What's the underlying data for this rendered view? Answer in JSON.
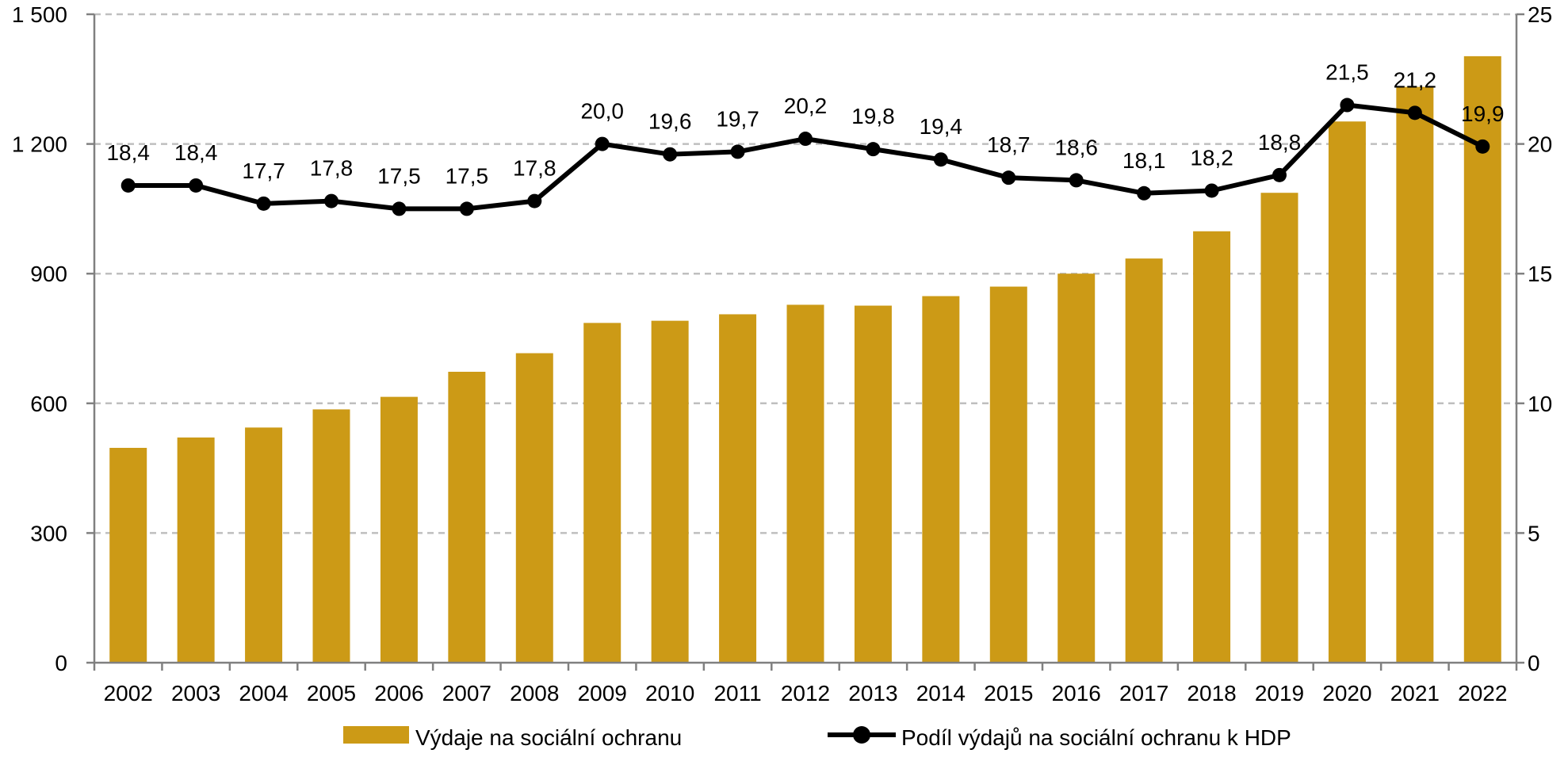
{
  "chart_data": {
    "type": "bar",
    "categories": [
      "2002",
      "2003",
      "2004",
      "2005",
      "2006",
      "2007",
      "2008",
      "2009",
      "2010",
      "2011",
      "2012",
      "2013",
      "2014",
      "2015",
      "2016",
      "2017",
      "2018",
      "2019",
      "2020",
      "2021",
      "2022"
    ],
    "series": [
      {
        "name": "Výdaje na sociální ochranu",
        "type": "bar",
        "axis": "left",
        "color": "#CC9A16",
        "values": [
          497,
          521,
          544,
          586,
          615,
          673,
          716,
          786,
          791,
          806,
          828,
          826,
          848,
          870,
          900,
          935,
          998,
          1087,
          1252,
          1332,
          1403
        ]
      },
      {
        "name": "Podíl výdajů na sociální ochranu k HDP",
        "type": "line",
        "axis": "right",
        "color": "#000000",
        "values": [
          18.4,
          18.4,
          17.7,
          17.8,
          17.5,
          17.5,
          17.8,
          20.0,
          19.6,
          19.7,
          20.2,
          19.8,
          19.4,
          18.7,
          18.6,
          18.1,
          18.2,
          18.8,
          21.5,
          21.2,
          19.9
        ],
        "labels": [
          "18,4",
          "18,4",
          "17,7",
          "17,8",
          "17,5",
          "17,5",
          "17,8",
          "20,0",
          "19,6",
          "19,7",
          "20,2",
          "19,8",
          "19,4",
          "18,7",
          "18,6",
          "18,1",
          "18,2",
          "18,8",
          "21,5",
          "21,2",
          "19,9"
        ]
      }
    ],
    "y_left": {
      "ylim": [
        0,
        1500
      ],
      "ticks": [
        0,
        300,
        600,
        900,
        1200,
        1500
      ],
      "tick_labels": [
        "0",
        "300",
        "600",
        "900",
        "1 200",
        "1 500"
      ]
    },
    "y_right": {
      "ylim": [
        0,
        25
      ],
      "ticks": [
        0,
        5,
        10,
        15,
        20,
        25
      ],
      "tick_labels": [
        "0",
        "5",
        "10",
        "15",
        "20",
        "25"
      ]
    },
    "grid": true,
    "legend": "bottom"
  }
}
